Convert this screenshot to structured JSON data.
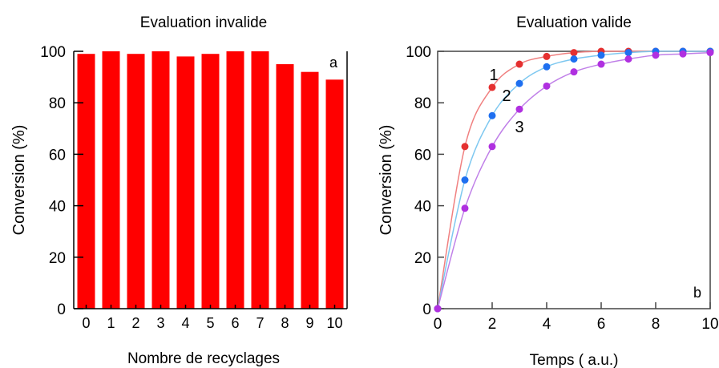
{
  "chart_data": [
    {
      "type": "bar",
      "title": "Evaluation invalide",
      "xlabel": "Nombre de recyclages",
      "ylabel": "Conversion (%)",
      "panel_label": "a",
      "categories": [
        "0",
        "1",
        "2",
        "3",
        "4",
        "5",
        "6",
        "7",
        "8",
        "9",
        "10"
      ],
      "values": [
        99,
        100,
        99,
        100,
        98,
        99,
        100,
        100,
        95,
        92,
        89
      ],
      "ylim": [
        0,
        100
      ],
      "yticks": [
        "0",
        "20",
        "40",
        "60",
        "80",
        "100"
      ],
      "bar_color": "#ff0000",
      "grid": false
    },
    {
      "type": "line",
      "title": "Evaluation valide",
      "xlabel": "Temps ( a.u.)",
      "ylabel": "Conversion (%)",
      "panel_label": "b",
      "xlim": [
        0,
        10
      ],
      "ylim": [
        0,
        100
      ],
      "xticks": [
        "0",
        "2",
        "4",
        "6",
        "8",
        "10"
      ],
      "yticks": [
        "0",
        "20",
        "40",
        "60",
        "80",
        "100"
      ],
      "x": [
        0,
        1,
        2,
        3,
        4,
        5,
        6,
        7,
        8,
        9,
        10
      ],
      "series": [
        {
          "name": "1",
          "color": "#e53030",
          "curve_color": "#f08080",
          "values": [
            0,
            63,
            86,
            95,
            98,
            99.5,
            100,
            100,
            100,
            100,
            100
          ]
        },
        {
          "name": "2",
          "color": "#1e6ff0",
          "curve_color": "#7ec8f0",
          "values": [
            0,
            50,
            75,
            87.5,
            94,
            97,
            98.5,
            99.5,
            100,
            100,
            100
          ]
        },
        {
          "name": "3",
          "color": "#b030e0",
          "curve_color": "#c080e8",
          "values": [
            0,
            39,
            63,
            77.5,
            86.5,
            92,
            95,
            97,
            98.5,
            99,
            99.5
          ]
        }
      ],
      "grid": false
    }
  ]
}
